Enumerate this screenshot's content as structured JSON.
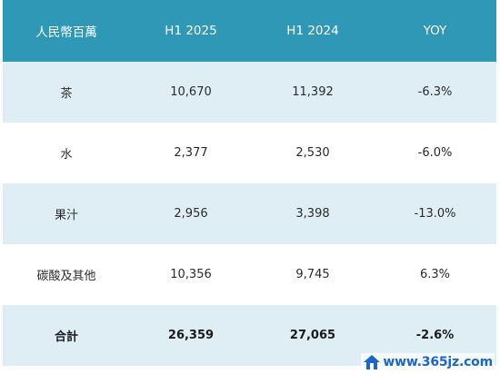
{
  "colors": {
    "header_bg": "#2e98b6",
    "row_alt_bg": "#dfeef5",
    "row_plain_bg": "#ffffff",
    "total_bg": "#dfeef5",
    "watermark": "#1b66c9"
  },
  "table": {
    "headers": [
      "人民幣百萬",
      "H1 2025",
      "H1 2024",
      "YOY"
    ],
    "rows": [
      [
        "茶",
        "10,670",
        "11,392",
        "-6.3%"
      ],
      [
        "水",
        "2,377",
        "2,530",
        "-6.0%"
      ],
      [
        "果汁",
        "2,956",
        "3,398",
        "-13.0%"
      ],
      [
        "碳酸及其他",
        "10,356",
        "9,745",
        "6.3%"
      ]
    ],
    "total": [
      "合計",
      "26,359",
      "27,065",
      "-2.6%"
    ]
  },
  "watermark": {
    "text": "www.365jz.com",
    "icon": "house-logo-icon"
  }
}
